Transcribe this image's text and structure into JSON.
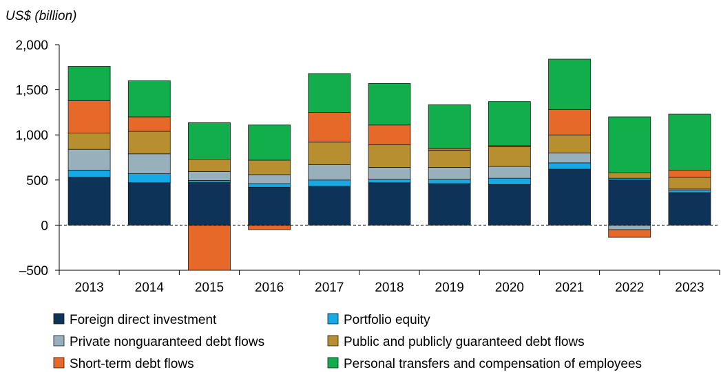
{
  "chart_data": {
    "type": "bar",
    "stacked": true,
    "ylabel": "US$ (billion)",
    "ylim": [
      -500,
      2000
    ],
    "yticks": [
      -500,
      0,
      500,
      1000,
      1500,
      2000
    ],
    "ytick_labels": [
      "–500",
      "0",
      "500",
      "1,000",
      "1,500",
      "2,000"
    ],
    "categories": [
      "2013",
      "2014",
      "2015",
      "2016",
      "2017",
      "2018",
      "2019",
      "2020",
      "2021",
      "2022",
      "2023"
    ],
    "zero_line": "dashed",
    "grid": false,
    "legend_position": "bottom",
    "series": [
      {
        "name": "Foreign direct investment",
        "color": "#0d3358",
        "values": [
          530,
          470,
          475,
          420,
          430,
          470,
          460,
          450,
          620,
          500,
          360
        ]
      },
      {
        "name": "Portfolio equity",
        "color": "#17a8e6",
        "values": [
          80,
          100,
          20,
          40,
          70,
          40,
          50,
          70,
          70,
          20,
          20
        ]
      },
      {
        "name": "Private nonguaranteed debt flows",
        "color": "#98b0bc",
        "values": [
          230,
          220,
          100,
          100,
          170,
          130,
          130,
          130,
          110,
          -50,
          20
        ]
      },
      {
        "name": "Public and publicly guaranteed debt flows",
        "color": "#b78f31",
        "values": [
          180,
          250,
          135,
          160,
          250,
          250,
          190,
          220,
          200,
          60,
          130
        ]
      },
      {
        "name": "Short-term debt flows",
        "color": "#e66929",
        "values": [
          360,
          160,
          -500,
          -50,
          330,
          220,
          20,
          10,
          280,
          -85,
          80
        ]
      },
      {
        "name": "Personal transfers and compensation of employees",
        "color": "#12ae4c",
        "values": [
          380,
          400,
          405,
          390,
          430,
          460,
          485,
          490,
          560,
          620,
          620
        ]
      }
    ]
  }
}
